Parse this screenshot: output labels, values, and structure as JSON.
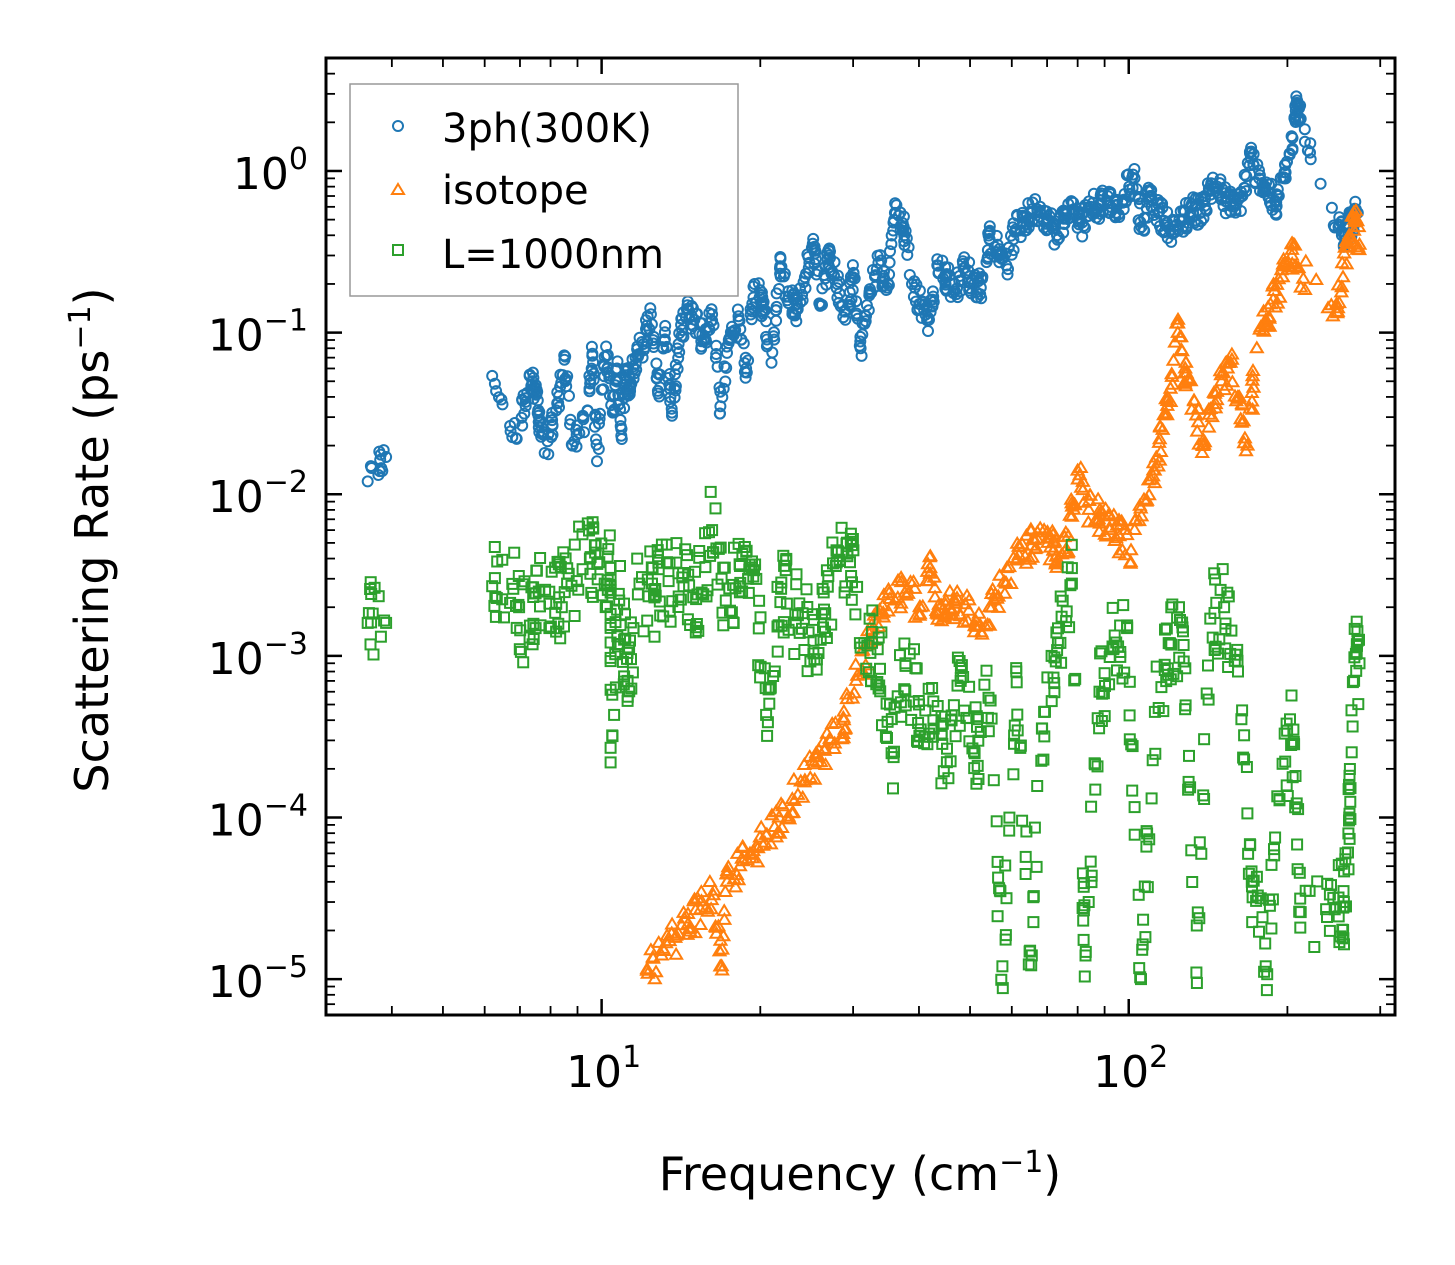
{
  "chart_data": {
    "type": "scatter",
    "title": "",
    "xlabel": "Frequency (cm",
    "xlabel_sup": "−1",
    "xlabel_tail": ")",
    "ylabel": "Scattering Rate (ps",
    "ylabel_sup": "−1",
    "ylabel_tail": ")",
    "xscale": "log",
    "yscale": "log",
    "xlim": [
      3.0,
      320.0
    ],
    "ylim": [
      6e-06,
      5.0
    ],
    "x_ticks": [
      {
        "value": 10,
        "base": "10",
        "exp": "1"
      },
      {
        "value": 100,
        "base": "10",
        "exp": "2"
      }
    ],
    "y_ticks": [
      {
        "value": 1,
        "base": "10",
        "exp": "0"
      },
      {
        "value": 0.1,
        "base": "10",
        "exp": "−1"
      },
      {
        "value": 0.01,
        "base": "10",
        "exp": "−2"
      },
      {
        "value": 0.001,
        "base": "10",
        "exp": "−3"
      },
      {
        "value": 0.0001,
        "base": "10",
        "exp": "−4"
      },
      {
        "value": 1e-05,
        "base": "10",
        "exp": "−5"
      }
    ],
    "legend_position": "top-left",
    "series": [
      {
        "name": "3ph(300K)",
        "marker": "circle",
        "color": "#1f77b4",
        "points": [
          [
            3.6,
            0.012
          ],
          [
            3.9,
            0.017
          ],
          [
            6.2,
            0.054
          ],
          [
            6.9,
            0.022
          ],
          [
            7.3,
            0.054
          ],
          [
            7.5,
            0.045
          ],
          [
            7.6,
            0.028
          ],
          [
            7.8,
            0.018
          ],
          [
            8.2,
            0.033
          ],
          [
            8.5,
            0.068
          ],
          [
            8.8,
            0.02
          ],
          [
            9.4,
            0.033
          ],
          [
            9.6,
            0.072
          ],
          [
            9.8,
            0.016
          ],
          [
            10.2,
            0.082
          ],
          [
            10.5,
            0.032
          ],
          [
            10.7,
            0.06
          ],
          [
            10.9,
            0.023
          ],
          [
            11.1,
            0.052
          ],
          [
            11.3,
            0.048
          ],
          [
            11.6,
            0.07
          ],
          [
            12.0,
            0.085
          ],
          [
            12.4,
            0.13
          ],
          [
            12.8,
            0.042
          ],
          [
            13.2,
            0.11
          ],
          [
            13.6,
            0.032
          ],
          [
            14.0,
            0.085
          ],
          [
            14.5,
            0.14
          ],
          [
            15.0,
            0.12
          ],
          [
            15.6,
            0.09
          ],
          [
            16.2,
            0.13
          ],
          [
            16.8,
            0.035
          ],
          [
            17.5,
            0.09
          ],
          [
            18.2,
            0.12
          ],
          [
            18.8,
            0.06
          ],
          [
            19.5,
            0.2
          ],
          [
            20.2,
            0.15
          ],
          [
            21.0,
            0.065
          ],
          [
            21.8,
            0.25
          ],
          [
            22.6,
            0.18
          ],
          [
            23.4,
            0.14
          ],
          [
            24.3,
            0.22
          ],
          [
            25.2,
            0.38
          ],
          [
            26.0,
            0.15
          ],
          [
            27.0,
            0.3
          ],
          [
            28.0,
            0.2
          ],
          [
            29.0,
            0.12
          ],
          [
            30.0,
            0.22
          ],
          [
            31.0,
            0.08
          ],
          [
            32.2,
            0.17
          ],
          [
            33.5,
            0.27
          ],
          [
            34.8,
            0.19
          ],
          [
            36.0,
            0.55
          ],
          [
            37.4,
            0.45
          ],
          [
            38.8,
            0.2
          ],
          [
            40.2,
            0.15
          ],
          [
            41.8,
            0.12
          ],
          [
            43.4,
            0.26
          ],
          [
            45.0,
            0.22
          ],
          [
            46.8,
            0.18
          ],
          [
            48.6,
            0.25
          ],
          [
            50.5,
            0.21
          ],
          [
            52.4,
            0.19
          ],
          [
            54.4,
            0.38
          ],
          [
            56.4,
            0.35
          ],
          [
            58.6,
            0.26
          ],
          [
            60.8,
            0.42
          ],
          [
            63.0,
            0.48
          ],
          [
            65.4,
            0.55
          ],
          [
            67.9,
            0.6
          ],
          [
            70.4,
            0.5
          ],
          [
            73.1,
            0.4
          ],
          [
            75.8,
            0.55
          ],
          [
            78.6,
            0.58
          ],
          [
            81.6,
            0.48
          ],
          [
            84.7,
            0.6
          ],
          [
            87.9,
            0.62
          ],
          [
            91.2,
            0.7
          ],
          [
            94.6,
            0.55
          ],
          [
            98.2,
            0.72
          ],
          [
            101.9,
            0.95
          ],
          [
            105.7,
            0.45
          ],
          [
            109.7,
            0.7
          ],
          [
            113.8,
            0.55
          ],
          [
            118.1,
            0.48
          ],
          [
            122.5,
            0.42
          ],
          [
            127.1,
            0.5
          ],
          [
            131.9,
            0.6
          ],
          [
            136.8,
            0.55
          ],
          [
            141.9,
            0.75
          ],
          [
            147.2,
            0.8
          ],
          [
            152.7,
            0.65
          ],
          [
            158.4,
            0.6
          ],
          [
            164.3,
            0.7
          ],
          [
            170.5,
            1.2
          ],
          [
            176.8,
            0.9
          ],
          [
            183.4,
            0.75
          ],
          [
            190.3,
            0.6
          ],
          [
            197.3,
            0.9
          ],
          [
            204.5,
            1.6
          ],
          [
            208.6,
            2.6
          ],
          [
            212.0,
            2.1
          ],
          [
            250.0,
            0.45
          ],
          [
            258.0,
            0.4
          ],
          [
            266.0,
            0.5
          ],
          [
            272.0,
            0.55
          ]
        ]
      },
      {
        "name": "isotope",
        "marker": "triangle",
        "color": "#ff7f0e",
        "points": [
          [
            12.2,
            1.15e-05
          ],
          [
            13.0,
            1.4e-05
          ],
          [
            13.8,
            1.8e-05
          ],
          [
            14.6,
            2.2e-05
          ],
          [
            15.4,
            2.7e-05
          ],
          [
            16.3,
            3.3e-05
          ],
          [
            16.9,
            1.2e-05
          ],
          [
            17.3,
            4e-05
          ],
          [
            18.3,
            5e-05
          ],
          [
            19.4,
            6.2e-05
          ],
          [
            20.5,
            7.8e-05
          ],
          [
            21.7,
            0.0001
          ],
          [
            23.0,
            0.00013
          ],
          [
            24.3,
            0.00017
          ],
          [
            25.7,
            0.00022
          ],
          [
            27.2,
            0.0003
          ],
          [
            28.8,
            0.0004
          ],
          [
            30.4,
            0.0007
          ],
          [
            32.2,
            0.0012
          ],
          [
            34.0,
            0.0018
          ],
          [
            36.0,
            0.0022
          ],
          [
            38.0,
            0.0026
          ],
          [
            40.2,
            0.002
          ],
          [
            42.0,
            0.0035
          ],
          [
            43.5,
            0.0018
          ],
          [
            45.0,
            0.0022
          ],
          [
            47.0,
            0.0021
          ],
          [
            49.7,
            0.0019
          ],
          [
            52.5,
            0.0014
          ],
          [
            55.5,
            0.0022
          ],
          [
            58.6,
            0.0028
          ],
          [
            61.9,
            0.0042
          ],
          [
            65.4,
            0.0048
          ],
          [
            69.1,
            0.006
          ],
          [
            72.0,
            0.0045
          ],
          [
            73.0,
            0.0035
          ],
          [
            76.8,
            0.0055
          ],
          [
            80.0,
            0.014
          ],
          [
            84.0,
            0.008
          ],
          [
            88.0,
            0.0075
          ],
          [
            92.0,
            0.0062
          ],
          [
            96.0,
            0.0055
          ],
          [
            101.0,
            0.0045
          ],
          [
            108.0,
            0.009
          ],
          [
            112.0,
            0.014
          ],
          [
            116.0,
            0.025
          ],
          [
            120.0,
            0.045
          ],
          [
            124.0,
            0.12
          ],
          [
            128.0,
            0.06
          ],
          [
            133.0,
            0.038
          ],
          [
            138.0,
            0.02
          ],
          [
            144.0,
            0.03
          ],
          [
            150.0,
            0.05
          ],
          [
            156.0,
            0.065
          ],
          [
            162.0,
            0.04
          ],
          [
            168.0,
            0.02
          ],
          [
            175.0,
            0.08
          ],
          [
            182.0,
            0.12
          ],
          [
            188.0,
            0.16
          ],
          [
            196.0,
            0.22
          ],
          [
            204.0,
            0.3
          ],
          [
            210.0,
            0.25
          ],
          [
            248.0,
            0.15
          ],
          [
            255.0,
            0.22
          ],
          [
            262.0,
            0.4
          ],
          [
            268.0,
            0.5
          ],
          [
            274.0,
            0.35
          ]
        ]
      },
      {
        "name": "L=1000nm",
        "marker": "square",
        "color": "#2ca02c",
        "points": [
          [
            3.6,
            0.0016
          ],
          [
            3.9,
            0.0016
          ],
          [
            6.2,
            0.0027
          ],
          [
            6.8,
            0.0026
          ],
          [
            7.3,
            0.0013
          ],
          [
            7.6,
            0.0025
          ],
          [
            8.2,
            0.0021
          ],
          [
            8.6,
            0.0028
          ],
          [
            9.5,
            0.004
          ],
          [
            9.9,
            0.0038
          ],
          [
            10.4,
            0.0035
          ],
          [
            10.4,
            0.00027
          ],
          [
            10.8,
            0.0022
          ],
          [
            11.2,
            0.0007
          ],
          [
            11.8,
            0.0028
          ],
          [
            12.6,
            0.0023
          ],
          [
            13.4,
            0.0029
          ],
          [
            14.3,
            0.0027
          ],
          [
            15.2,
            0.0024
          ],
          [
            16.2,
            0.006
          ],
          [
            17.2,
            0.0022
          ],
          [
            18.3,
            0.0036
          ],
          [
            19.4,
            0.0031
          ],
          [
            20.6,
            0.00032
          ],
          [
            21.9,
            0.0026
          ],
          [
            23.3,
            0.0018
          ],
          [
            24.7,
            0.0014
          ],
          [
            26.3,
            0.0015
          ],
          [
            27.9,
            0.0045
          ],
          [
            29.6,
            0.0038
          ],
          [
            31.5,
            0.0012
          ],
          [
            33.4,
            0.0011
          ],
          [
            35.5,
            0.00025
          ],
          [
            37.7,
            0.0009
          ],
          [
            40.0,
            0.0005
          ],
          [
            42.6,
            0.0004
          ],
          [
            45.2,
            0.00022
          ],
          [
            48.0,
            0.0007
          ],
          [
            51.0,
            0.00025
          ],
          [
            54.2,
            0.00055
          ],
          [
            57.6,
            1.2e-05
          ],
          [
            61.2,
            0.0008
          ],
          [
            65.0,
            1.5e-05
          ],
          [
            69.1,
            0.00045
          ],
          [
            73.4,
            0.0012
          ],
          [
            78.0,
            0.0028
          ],
          [
            82.8,
            1.4e-05
          ],
          [
            88.0,
            0.0006
          ],
          [
            93.5,
            0.0011
          ],
          [
            99.3,
            0.0015
          ],
          [
            105.5,
            1e-05
          ],
          [
            112.1,
            0.00045
          ],
          [
            119.1,
            0.0012
          ],
          [
            126.5,
            0.0015
          ],
          [
            134.4,
            1.1e-05
          ],
          [
            142.8,
            0.0017
          ],
          [
            151.7,
            0.002
          ],
          [
            161.2,
            0.0008
          ],
          [
            171.2,
            4e-05
          ],
          [
            181.9,
            1.2e-05
          ],
          [
            193.2,
            0.00013
          ],
          [
            205.3,
            0.00035
          ],
          [
            212.0,
            2.6e-05
          ],
          [
            250.0,
            3.2e-05
          ],
          [
            256.0,
            3e-05
          ],
          [
            262.0,
            0.0001
          ],
          [
            268.0,
            0.00098
          ],
          [
            274.0,
            0.0009
          ]
        ]
      }
    ]
  }
}
